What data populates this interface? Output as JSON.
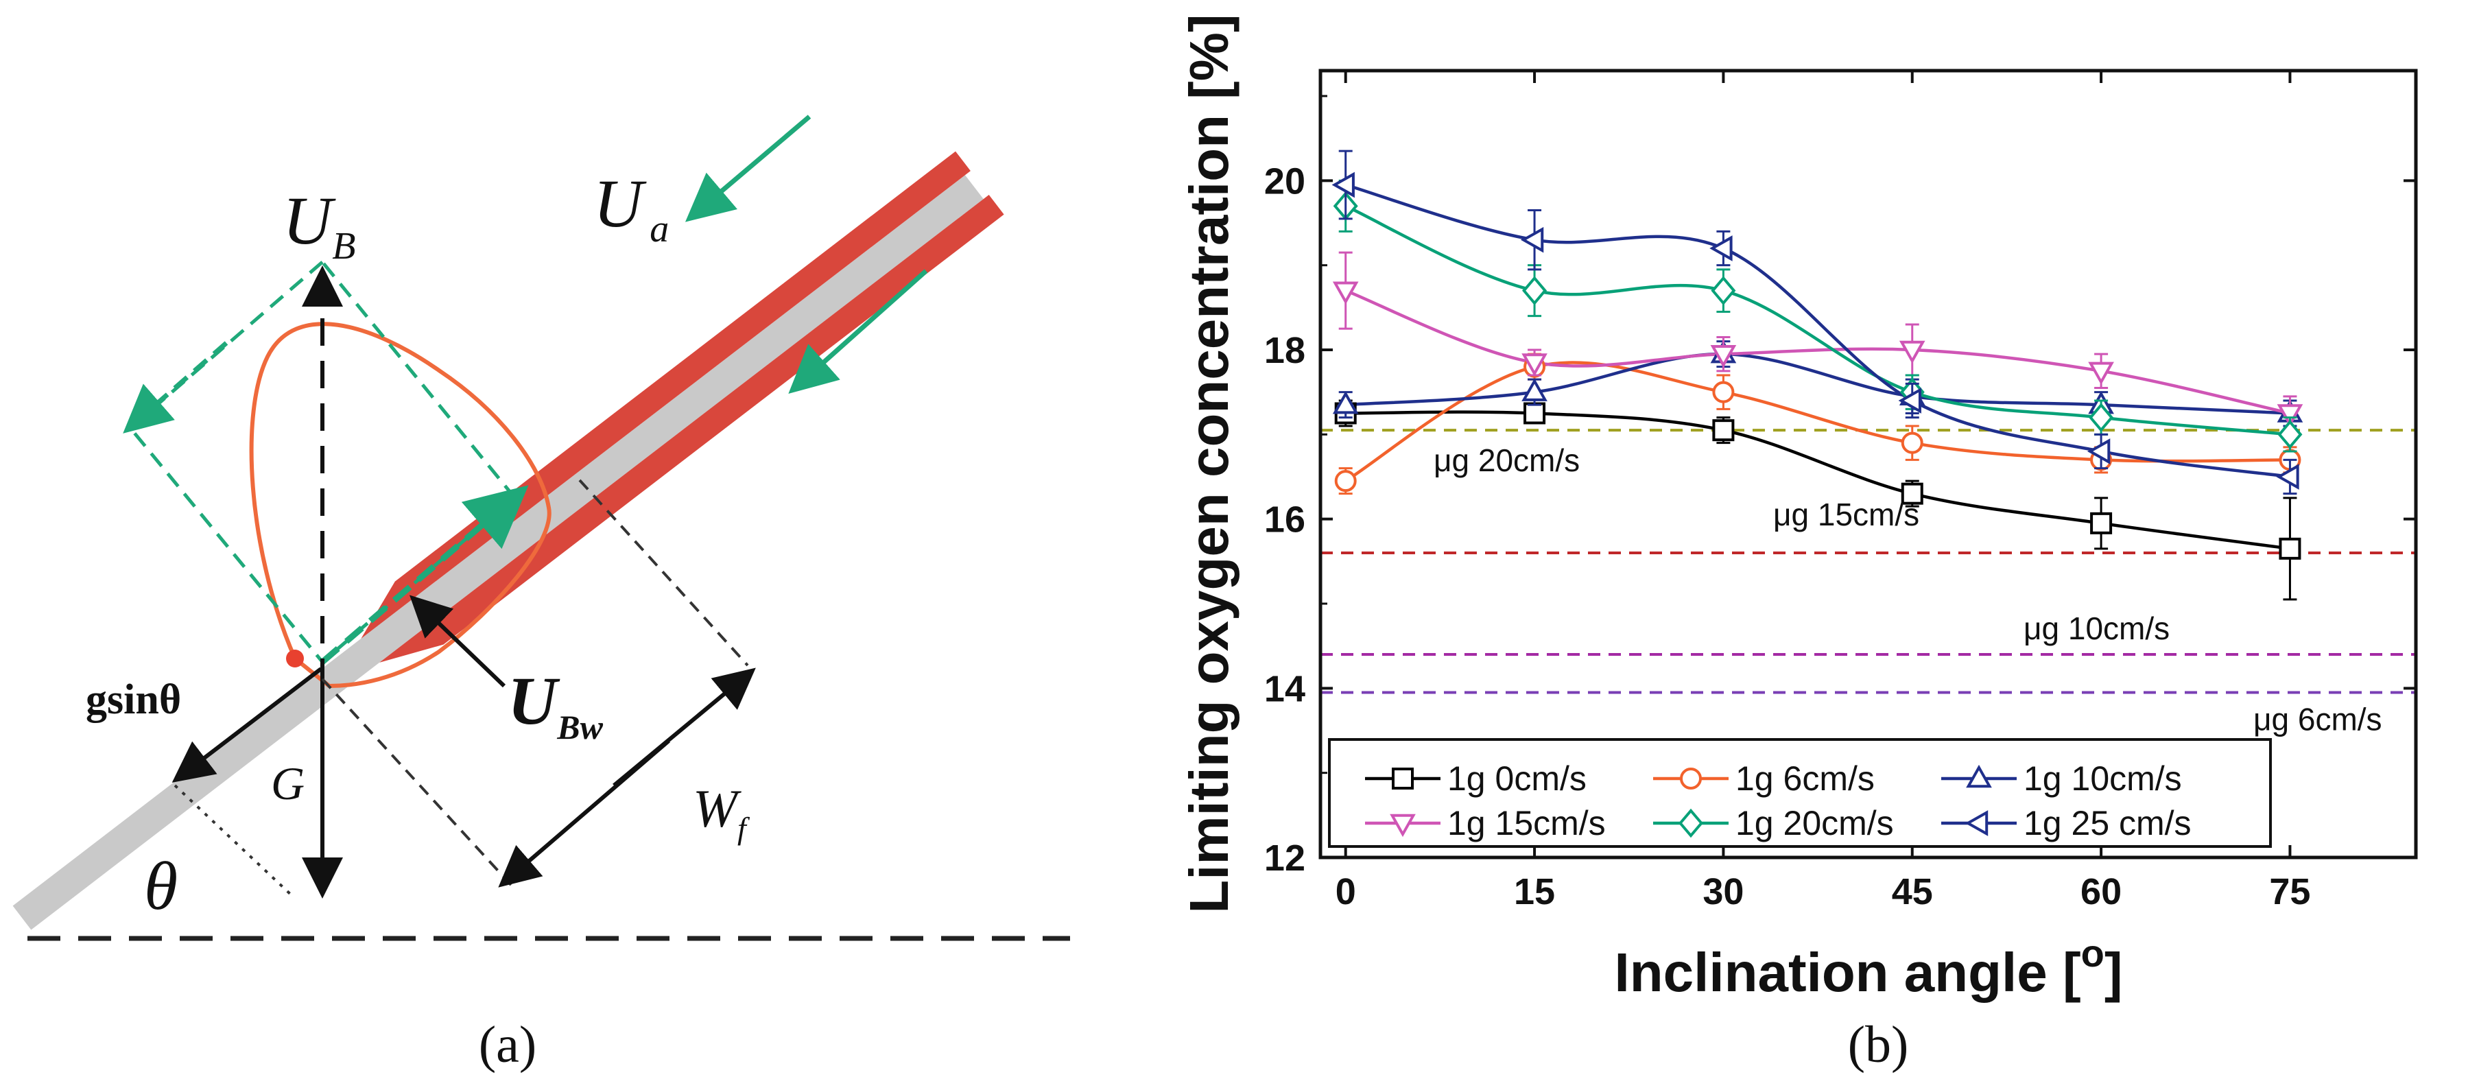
{
  "panel_a": {
    "caption": "(a)",
    "labels": {
      "ub": "U",
      "ub_sub": "B",
      "ua": "U",
      "ua_sub": "a",
      "ubw": "U",
      "ubw_sub": "Bw",
      "gsin": "gsinθ",
      "g": "G",
      "wf": "W",
      "wf_sub": "f",
      "theta": "θ"
    },
    "colors": {
      "plate": "#c9c9c9",
      "flame": "#d9473c",
      "flow": "#1fa97a",
      "outline": "#ef6a3c"
    }
  },
  "panel_b": {
    "caption": "(b)"
  },
  "chart_data": {
    "type": "line",
    "title": "",
    "xlabel": "Inclination angle [",
    "xlabel_sup": "o",
    "xlabel_end": "]",
    "ylabel": "Limiting oxygen concentration [%]",
    "xlim": [
      -2,
      85
    ],
    "ylim": [
      12,
      21.3
    ],
    "x_ticks": [
      0,
      15,
      30,
      45,
      60,
      75
    ],
    "y_ticks": [
      12,
      14,
      16,
      18,
      20
    ],
    "x_tick_labels": [
      "0",
      "15",
      "30",
      "45",
      "60",
      "75"
    ],
    "y_tick_labels": [
      "12",
      "14",
      "16",
      "18",
      "20"
    ],
    "grid": false,
    "legend_position": "bottom-left",
    "x": [
      0,
      15,
      30,
      45,
      60,
      75
    ],
    "series": [
      {
        "name": "1g 0cm/s",
        "marker": "square",
        "color": "#000000",
        "values": [
          17.25,
          17.25,
          17.05,
          16.3,
          15.95,
          15.65
        ],
        "errors": [
          0.15,
          0.1,
          0.15,
          0.15,
          0.3,
          0.6
        ]
      },
      {
        "name": "1g 6cm/s",
        "marker": "circle",
        "color": "#f2622c",
        "values": [
          16.45,
          17.8,
          17.5,
          16.9,
          16.7,
          16.7
        ],
        "errors": [
          0.15,
          0.15,
          0.2,
          0.2,
          0.15,
          0.15
        ]
      },
      {
        "name": "1g 10cm/s",
        "marker": "triangle-up",
        "color": "#1f2f8c",
        "values": [
          17.35,
          17.5,
          17.95,
          17.45,
          17.35,
          17.25
        ],
        "errors": [
          0.15,
          0.15,
          0.15,
          0.2,
          0.15,
          0.15
        ]
      },
      {
        "name": "1g 15cm/s",
        "marker": "triangle-down",
        "color": "#cf55b5",
        "values": [
          18.7,
          17.85,
          17.95,
          18.0,
          17.75,
          17.25
        ],
        "errors": [
          0.45,
          0.15,
          0.2,
          0.3,
          0.2,
          0.2
        ]
      },
      {
        "name": "1g 20cm/s",
        "marker": "diamond",
        "color": "#08a178",
        "values": [
          19.7,
          18.7,
          18.7,
          17.5,
          17.2,
          17.0
        ],
        "errors": [
          0.3,
          0.3,
          0.25,
          0.2,
          0.2,
          0.2
        ]
      },
      {
        "name": "1g 25 cm/s",
        "marker": "triangle-left",
        "color": "#1f2f8c",
        "values": [
          19.95,
          19.3,
          19.2,
          17.4,
          16.8,
          16.5
        ],
        "errors": [
          0.4,
          0.35,
          0.2,
          0.2,
          0.2,
          0.2
        ]
      }
    ],
    "reference_lines": [
      {
        "label": "μg 20cm/s",
        "value": 17.05,
        "color": "#a0a020"
      },
      {
        "label": "μg 15cm/s",
        "value": 15.6,
        "color": "#c0282a"
      },
      {
        "label": "μg  10cm/s",
        "value": 14.4,
        "color": "#a42aa4"
      },
      {
        "label": "μg  6cm/s",
        "value": 13.95,
        "color": "#7a3fb5"
      }
    ]
  }
}
